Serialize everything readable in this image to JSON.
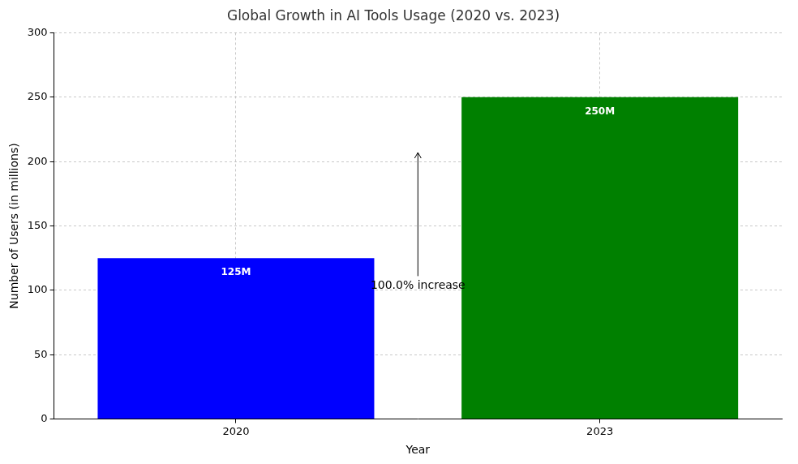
{
  "chart_data": {
    "type": "bar",
    "title": "Global Growth in AI Tools Usage (2020 vs. 2023)",
    "x_label": "Year",
    "y_label": "Number of Users (in millions)",
    "categories": [
      "2020",
      "2023"
    ],
    "values": [
      125,
      250
    ],
    "value_labels": [
      "125M",
      "250M"
    ],
    "colors": [
      "#0000ff",
      "#008000"
    ],
    "ylim": [
      0,
      300
    ],
    "yticks": [
      0,
      50,
      100,
      150,
      200,
      250,
      300
    ],
    "grid": true,
    "data_labels": true,
    "annotations": [
      "100.0% increase"
    ]
  }
}
